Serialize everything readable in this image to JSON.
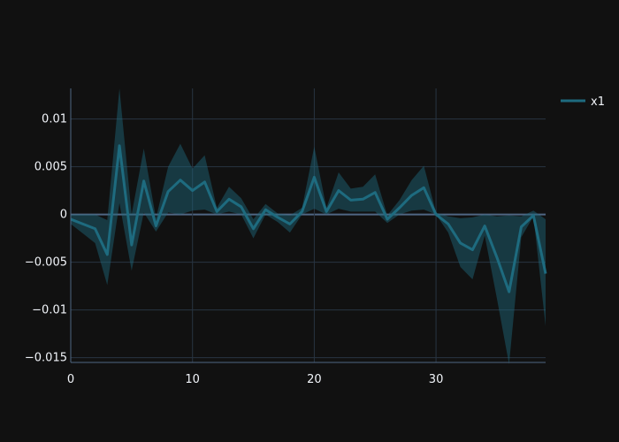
{
  "chart_data": {
    "type": "line",
    "xlim": [
      0,
      39
    ],
    "ylim": [
      -0.0155,
      0.0132
    ],
    "x_ticks": [
      0,
      10,
      20,
      30
    ],
    "y_ticks": [
      0.01,
      0.005,
      0,
      -0.005,
      -0.01,
      -0.015
    ],
    "y_tick_labels": [
      "0.01",
      "0.005",
      "0",
      "−0.005",
      "−0.01",
      "−0.015"
    ],
    "x_tick_labels": [
      "0",
      "10",
      "20",
      "30"
    ],
    "grid": true,
    "legend_position": "top-right",
    "colors": {
      "background": "#111111",
      "grid": "#283442",
      "line": "#1e6b7f",
      "band": "rgba(30,107,127,0.45)",
      "text": "#f2f5fa"
    },
    "series": [
      {
        "name": "x1",
        "x": [
          0,
          1,
          2,
          3,
          4,
          5,
          6,
          7,
          8,
          9,
          10,
          11,
          12,
          13,
          14,
          15,
          16,
          17,
          18,
          19,
          20,
          21,
          22,
          23,
          24,
          25,
          26,
          27,
          28,
          29,
          30,
          31,
          32,
          33,
          34,
          35,
          36,
          37,
          38,
          39
        ],
        "y": [
          -0.0005,
          -0.001,
          -0.0015,
          -0.0042,
          0.0072,
          -0.0032,
          0.0035,
          -0.0012,
          0.0024,
          0.0036,
          0.0025,
          0.0034,
          0.0003,
          0.0016,
          0.0008,
          -0.0015,
          0.0005,
          -0.0003,
          -0.001,
          0.0003,
          0.0039,
          0.0003,
          0.0025,
          0.0015,
          0.0016,
          0.0023,
          -0.0005,
          0.0007,
          0.002,
          0.0028,
          0.0,
          -0.001,
          -0.003,
          -0.0037,
          -0.0012,
          -0.0045,
          -0.0081,
          -0.0013,
          -0.0001,
          -0.0062
        ],
        "upper": [
          0.0,
          0.0,
          0.0,
          -0.0006,
          0.0132,
          0.0,
          0.0069,
          -0.0004,
          0.005,
          0.0074,
          0.0048,
          0.0062,
          0.0007,
          0.0029,
          0.0017,
          -0.0005,
          0.0011,
          0.0001,
          -0.0001,
          0.0007,
          0.0071,
          0.0007,
          0.0044,
          0.0027,
          0.0029,
          0.0042,
          -0.0001,
          0.0015,
          0.0036,
          0.0051,
          0.0002,
          -0.0002,
          -0.0004,
          -0.0003,
          0.0,
          -0.0002,
          -0.0001,
          -0.0002,
          0.0004,
          -0.0005
        ],
        "lower": [
          -0.001,
          -0.002,
          -0.003,
          -0.0074,
          0.0012,
          -0.0059,
          0.0002,
          -0.0018,
          0.0002,
          0.0,
          0.0004,
          0.0005,
          0.0,
          0.0003,
          0.0,
          -0.0025,
          0.0,
          -0.0008,
          -0.0019,
          0.0,
          0.0006,
          0.0,
          0.0006,
          0.0003,
          0.0003,
          0.0003,
          -0.0009,
          0.0,
          0.0004,
          0.0005,
          0.0,
          -0.0019,
          -0.0055,
          -0.0068,
          -0.0022,
          -0.0088,
          -0.0157,
          -0.0024,
          -0.0002,
          -0.0117
        ]
      }
    ]
  }
}
